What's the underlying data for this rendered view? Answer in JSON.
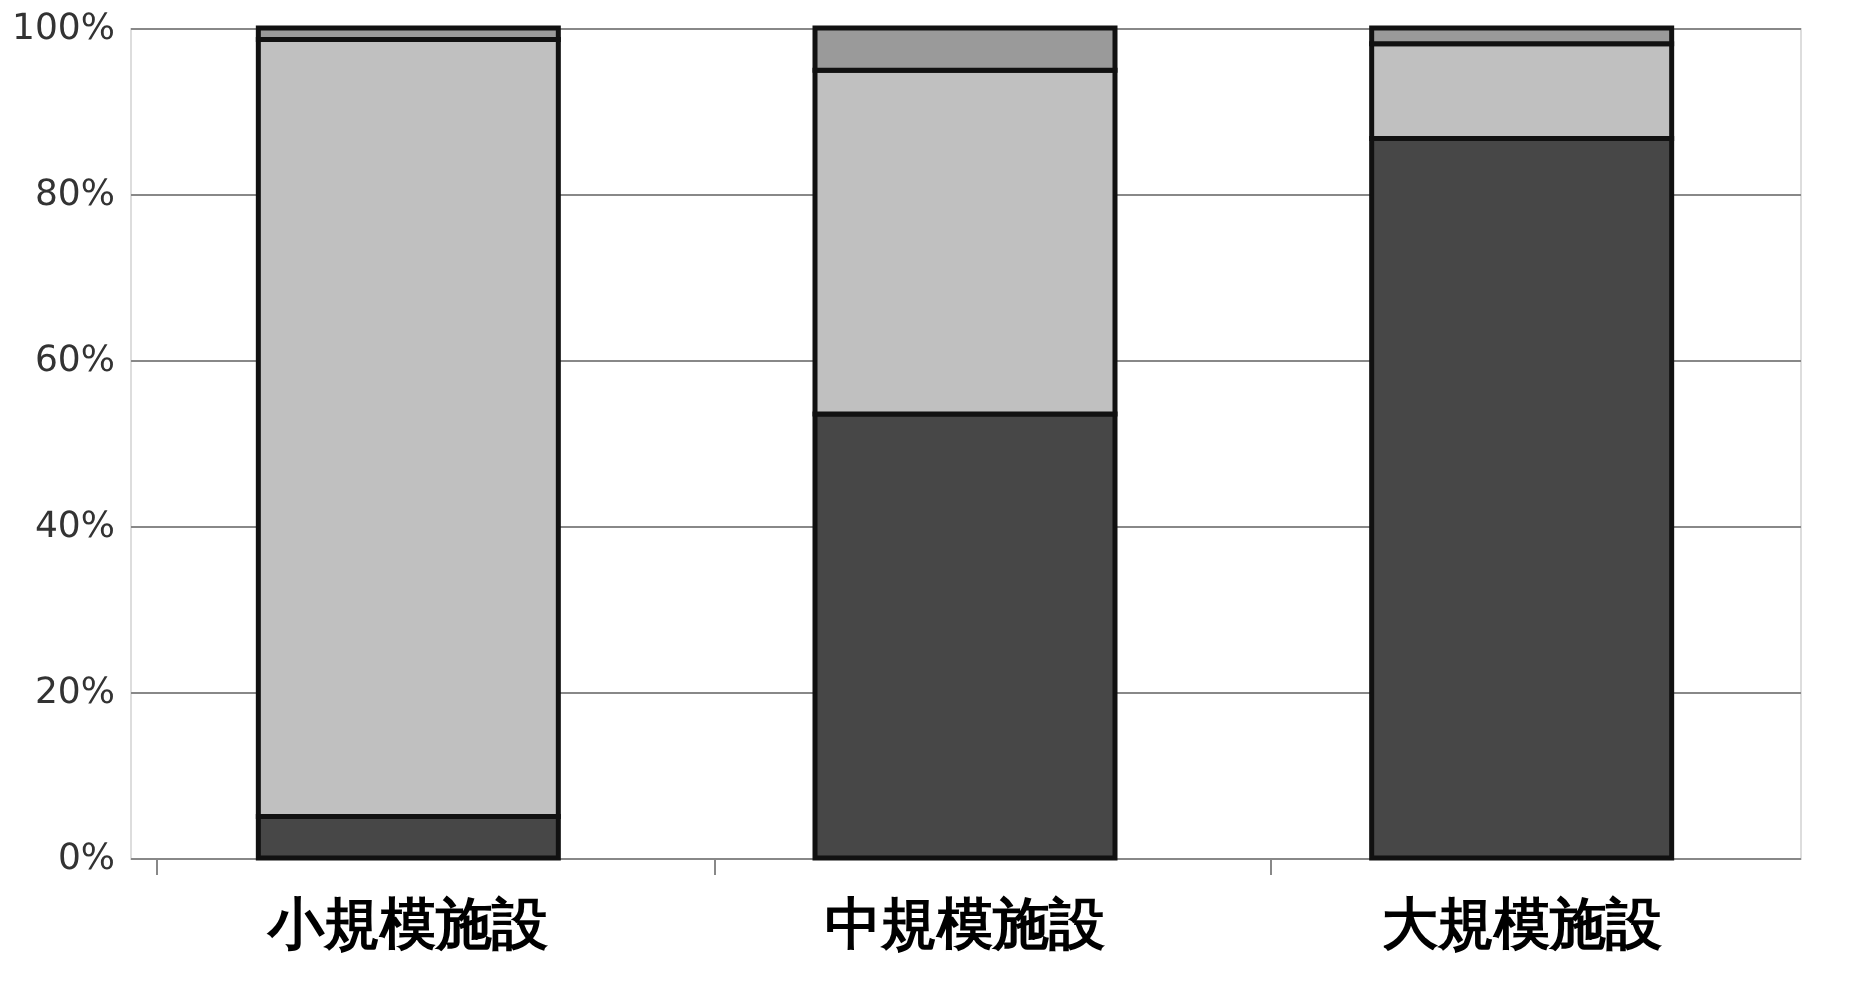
{
  "chart_data": {
    "type": "bar",
    "stacked": true,
    "categories": [
      "小規模施設",
      "中規模施設",
      "大規模施設"
    ],
    "series": [
      {
        "color": "#474747",
        "values": [
          5,
          53.5,
          86.7
        ]
      },
      {
        "color": "#c0c0c0",
        "values": [
          93.6,
          41.4,
          11.4
        ]
      },
      {
        "color": "#9a9a9a",
        "values": [
          1.4,
          5.1,
          1.9
        ]
      }
    ],
    "ylim": [
      0,
      100
    ],
    "yticks": [
      {
        "value": 0,
        "label": "0%"
      },
      {
        "value": 20,
        "label": "20%"
      },
      {
        "value": 40,
        "label": "40%"
      },
      {
        "value": 60,
        "label": "60%"
      },
      {
        "value": 80,
        "label": "80%"
      },
      {
        "value": 100,
        "label": "100%"
      }
    ],
    "grid": "y",
    "legend": false
  }
}
